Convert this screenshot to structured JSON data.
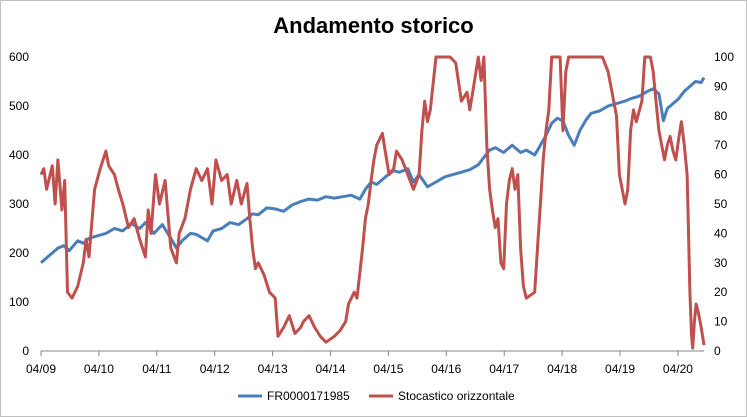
{
  "chart_data": {
    "type": "line",
    "title": "Andamento storico",
    "x": {
      "tick_labels": [
        "04/09",
        "04/10",
        "04/11",
        "04/12",
        "04/13",
        "04/14",
        "04/15",
        "04/16",
        "04/17",
        "04/18",
        "04/19",
        "04/20"
      ],
      "range": [
        2009.25,
        2021.0
      ]
    },
    "y_left": {
      "range": [
        0,
        600
      ],
      "ticks": [
        "0",
        "100",
        "200",
        "300",
        "400",
        "500",
        "600"
      ]
    },
    "y_right": {
      "range": [
        0,
        100
      ],
      "ticks": [
        "0",
        "10",
        "20",
        "30",
        "40",
        "50",
        "60",
        "70",
        "80",
        "90",
        "100"
      ]
    },
    "grid": false,
    "legend_position": "bottom",
    "series": [
      {
        "name": "FR0000171985",
        "axis": "left",
        "color": "#4a7ebb",
        "points": [
          [
            2009.25,
            180
          ],
          [
            2009.35,
            190
          ],
          [
            2009.45,
            200
          ],
          [
            2009.55,
            210
          ],
          [
            2009.65,
            215
          ],
          [
            2009.75,
            205
          ],
          [
            2009.9,
            225
          ],
          [
            2010.0,
            220
          ],
          [
            2010.1,
            230
          ],
          [
            2010.25,
            235
          ],
          [
            2010.4,
            240
          ],
          [
            2010.55,
            250
          ],
          [
            2010.7,
            245
          ],
          [
            2010.85,
            260
          ],
          [
            2011.0,
            250
          ],
          [
            2011.1,
            262
          ],
          [
            2011.25,
            240
          ],
          [
            2011.4,
            258
          ],
          [
            2011.55,
            230
          ],
          [
            2011.65,
            210
          ],
          [
            2011.75,
            225
          ],
          [
            2011.9,
            240
          ],
          [
            2012.0,
            238
          ],
          [
            2012.2,
            225
          ],
          [
            2012.3,
            245
          ],
          [
            2012.45,
            250
          ],
          [
            2012.6,
            262
          ],
          [
            2012.75,
            258
          ],
          [
            2012.9,
            270
          ],
          [
            2013.0,
            280
          ],
          [
            2013.1,
            278
          ],
          [
            2013.25,
            292
          ],
          [
            2013.4,
            290
          ],
          [
            2013.55,
            285
          ],
          [
            2013.7,
            298
          ],
          [
            2013.85,
            305
          ],
          [
            2014.0,
            310
          ],
          [
            2014.15,
            308
          ],
          [
            2014.3,
            315
          ],
          [
            2014.45,
            312
          ],
          [
            2014.6,
            315
          ],
          [
            2014.75,
            318
          ],
          [
            2014.9,
            310
          ],
          [
            2015.0,
            330
          ],
          [
            2015.1,
            345
          ],
          [
            2015.2,
            340
          ],
          [
            2015.35,
            355
          ],
          [
            2015.5,
            368
          ],
          [
            2015.6,
            365
          ],
          [
            2015.75,
            372
          ],
          [
            2015.85,
            345
          ],
          [
            2015.95,
            360
          ],
          [
            2016.1,
            335
          ],
          [
            2016.25,
            345
          ],
          [
            2016.4,
            355
          ],
          [
            2016.55,
            360
          ],
          [
            2016.7,
            365
          ],
          [
            2016.85,
            370
          ],
          [
            2017.0,
            380
          ],
          [
            2017.1,
            395
          ],
          [
            2017.2,
            410
          ],
          [
            2017.3,
            415
          ],
          [
            2017.45,
            405
          ],
          [
            2017.6,
            420
          ],
          [
            2017.75,
            405
          ],
          [
            2017.85,
            410
          ],
          [
            2018.0,
            400
          ],
          [
            2018.1,
            420
          ],
          [
            2018.2,
            440
          ],
          [
            2018.3,
            465
          ],
          [
            2018.4,
            475
          ],
          [
            2018.5,
            470
          ],
          [
            2018.6,
            440
          ],
          [
            2018.7,
            420
          ],
          [
            2018.8,
            450
          ],
          [
            2018.9,
            470
          ],
          [
            2019.0,
            485
          ],
          [
            2019.15,
            490
          ],
          [
            2019.3,
            500
          ],
          [
            2019.45,
            505
          ],
          [
            2019.6,
            510
          ],
          [
            2019.7,
            515
          ],
          [
            2019.85,
            520
          ],
          [
            2020.0,
            530
          ],
          [
            2020.1,
            535
          ],
          [
            2020.2,
            525
          ],
          [
            2020.28,
            470
          ],
          [
            2020.35,
            495
          ],
          [
            2020.45,
            505
          ],
          [
            2020.55,
            515
          ],
          [
            2020.65,
            530
          ],
          [
            2020.75,
            540
          ],
          [
            2020.85,
            550
          ],
          [
            2020.95,
            548
          ],
          [
            2021.0,
            558
          ]
        ]
      },
      {
        "name": "Stocastico orizzontale",
        "axis": "right",
        "color": "#c0504d",
        "points": [
          [
            2009.25,
            60
          ],
          [
            2009.3,
            62
          ],
          [
            2009.35,
            55
          ],
          [
            2009.45,
            63
          ],
          [
            2009.5,
            50
          ],
          [
            2009.55,
            65
          ],
          [
            2009.62,
            48
          ],
          [
            2009.67,
            58
          ],
          [
            2009.72,
            20
          ],
          [
            2009.8,
            18
          ],
          [
            2009.9,
            22
          ],
          [
            2010.0,
            30
          ],
          [
            2010.05,
            38
          ],
          [
            2010.1,
            32
          ],
          [
            2010.2,
            55
          ],
          [
            2010.3,
            62
          ],
          [
            2010.4,
            68
          ],
          [
            2010.45,
            63
          ],
          [
            2010.55,
            60
          ],
          [
            2010.62,
            55
          ],
          [
            2010.7,
            50
          ],
          [
            2010.8,
            42
          ],
          [
            2010.9,
            45
          ],
          [
            2011.0,
            38
          ],
          [
            2011.1,
            32
          ],
          [
            2011.15,
            48
          ],
          [
            2011.2,
            40
          ],
          [
            2011.28,
            60
          ],
          [
            2011.35,
            50
          ],
          [
            2011.45,
            58
          ],
          [
            2011.55,
            35
          ],
          [
            2011.65,
            30
          ],
          [
            2011.7,
            40
          ],
          [
            2011.8,
            45
          ],
          [
            2011.9,
            55
          ],
          [
            2012.0,
            62
          ],
          [
            2012.1,
            58
          ],
          [
            2012.2,
            62
          ],
          [
            2012.28,
            50
          ],
          [
            2012.35,
            65
          ],
          [
            2012.45,
            58
          ],
          [
            2012.55,
            60
          ],
          [
            2012.62,
            50
          ],
          [
            2012.72,
            58
          ],
          [
            2012.8,
            50
          ],
          [
            2012.9,
            57
          ],
          [
            2012.95,
            45
          ],
          [
            2013.0,
            35
          ],
          [
            2013.05,
            28
          ],
          [
            2013.1,
            30
          ],
          [
            2013.2,
            26
          ],
          [
            2013.3,
            20
          ],
          [
            2013.4,
            18
          ],
          [
            2013.45,
            5
          ],
          [
            2013.55,
            8
          ],
          [
            2013.65,
            12
          ],
          [
            2013.75,
            6
          ],
          [
            2013.85,
            8
          ],
          [
            2013.9,
            10
          ],
          [
            2014.0,
            12
          ],
          [
            2014.1,
            8
          ],
          [
            2014.2,
            5
          ],
          [
            2014.3,
            3
          ],
          [
            2014.45,
            5
          ],
          [
            2014.55,
            7
          ],
          [
            2014.65,
            10
          ],
          [
            2014.7,
            16
          ],
          [
            2014.8,
            20
          ],
          [
            2014.85,
            18
          ],
          [
            2014.95,
            35
          ],
          [
            2015.0,
            45
          ],
          [
            2015.05,
            50
          ],
          [
            2015.1,
            58
          ],
          [
            2015.15,
            65
          ],
          [
            2015.2,
            70
          ],
          [
            2015.3,
            74
          ],
          [
            2015.35,
            68
          ],
          [
            2015.42,
            60
          ],
          [
            2015.5,
            62
          ],
          [
            2015.55,
            68
          ],
          [
            2015.65,
            65
          ],
          [
            2015.75,
            60
          ],
          [
            2015.85,
            55
          ],
          [
            2015.95,
            60
          ],
          [
            2016.0,
            75
          ],
          [
            2016.05,
            85
          ],
          [
            2016.1,
            78
          ],
          [
            2016.15,
            82
          ],
          [
            2016.25,
            100
          ],
          [
            2016.5,
            100
          ],
          [
            2016.6,
            98
          ],
          [
            2016.7,
            85
          ],
          [
            2016.8,
            88
          ],
          [
            2016.85,
            82
          ],
          [
            2016.9,
            88
          ],
          [
            2017.0,
            100
          ],
          [
            2017.05,
            92
          ],
          [
            2017.1,
            100
          ],
          [
            2017.15,
            70
          ],
          [
            2017.2,
            55
          ],
          [
            2017.25,
            48
          ],
          [
            2017.3,
            42
          ],
          [
            2017.35,
            45
          ],
          [
            2017.4,
            30
          ],
          [
            2017.45,
            28
          ],
          [
            2017.5,
            50
          ],
          [
            2017.55,
            58
          ],
          [
            2017.6,
            62
          ],
          [
            2017.65,
            55
          ],
          [
            2017.7,
            60
          ],
          [
            2017.75,
            35
          ],
          [
            2017.8,
            22
          ],
          [
            2017.85,
            18
          ],
          [
            2018.0,
            20
          ],
          [
            2018.05,
            35
          ],
          [
            2018.1,
            50
          ],
          [
            2018.15,
            65
          ],
          [
            2018.2,
            75
          ],
          [
            2018.25,
            82
          ],
          [
            2018.3,
            100
          ],
          [
            2018.45,
            100
          ],
          [
            2018.5,
            75
          ],
          [
            2018.55,
            95
          ],
          [
            2018.6,
            100
          ],
          [
            2018.7,
            100
          ],
          [
            2018.75,
            100
          ],
          [
            2018.8,
            100
          ],
          [
            2018.85,
            100
          ],
          [
            2019.0,
            100
          ],
          [
            2019.1,
            100
          ],
          [
            2019.2,
            100
          ],
          [
            2019.3,
            95
          ],
          [
            2019.35,
            90
          ],
          [
            2019.4,
            85
          ],
          [
            2019.45,
            80
          ],
          [
            2019.5,
            60
          ],
          [
            2019.6,
            50
          ],
          [
            2019.65,
            55
          ],
          [
            2019.7,
            75
          ],
          [
            2019.75,
            82
          ],
          [
            2019.8,
            78
          ],
          [
            2019.9,
            85
          ],
          [
            2019.95,
            100
          ],
          [
            2020.05,
            100
          ],
          [
            2020.1,
            95
          ],
          [
            2020.15,
            85
          ],
          [
            2020.2,
            75
          ],
          [
            2020.25,
            70
          ],
          [
            2020.3,
            65
          ],
          [
            2020.35,
            70
          ],
          [
            2020.4,
            73
          ],
          [
            2020.45,
            68
          ],
          [
            2020.5,
            65
          ],
          [
            2020.55,
            72
          ],
          [
            2020.6,
            78
          ],
          [
            2020.65,
            70
          ],
          [
            2020.7,
            60
          ],
          [
            2020.72,
            45
          ],
          [
            2020.75,
            20
          ],
          [
            2020.78,
            5
          ],
          [
            2020.8,
            1
          ],
          [
            2020.83,
            10
          ],
          [
            2020.86,
            16
          ],
          [
            2020.9,
            13
          ],
          [
            2020.95,
            8
          ],
          [
            2021.0,
            2
          ]
        ]
      }
    ]
  }
}
